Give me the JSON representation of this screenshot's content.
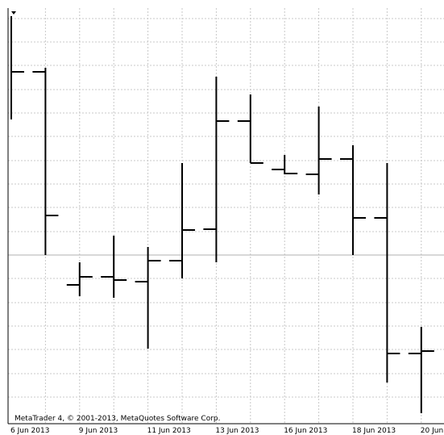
{
  "chart_data": {
    "type": "ohlc",
    "categories": [
      "6 Jun 2013",
      null,
      "9 Jun 2013",
      null,
      "11 Jun 2013",
      null,
      "13 Jun 2013",
      null,
      "16 Jun 2013",
      null,
      "18 Jun 2013",
      null,
      "20 Jun"
    ],
    "open": [
      null,
      451,
      187,
      197,
      191,
      217,
      256,
      390,
      330,
      324,
      343,
      270,
      102
    ],
    "high": [
      520,
      456,
      215,
      248,
      234,
      338,
      445,
      423,
      348,
      408,
      360,
      338,
      135
    ],
    "low": [
      392,
      224,
      173,
      171,
      108,
      195,
      215,
      338,
      324,
      299,
      224,
      66,
      28
    ],
    "close": [
      451,
      273,
      197,
      193,
      217,
      255,
      390,
      338,
      325,
      343,
      270,
      102,
      105
    ],
    "color": "#000000",
    "ylim": [
      15,
      530
    ],
    "yticks": [
      517,
      488,
      459,
      429,
      400,
      371,
      341,
      312,
      283,
      253,
      224,
      195,
      165,
      136,
      107,
      77,
      48
    ],
    "grid": true,
    "annotation": "MetaTrader 4, © 2001-2013, MetaQuotes Software Corp."
  }
}
